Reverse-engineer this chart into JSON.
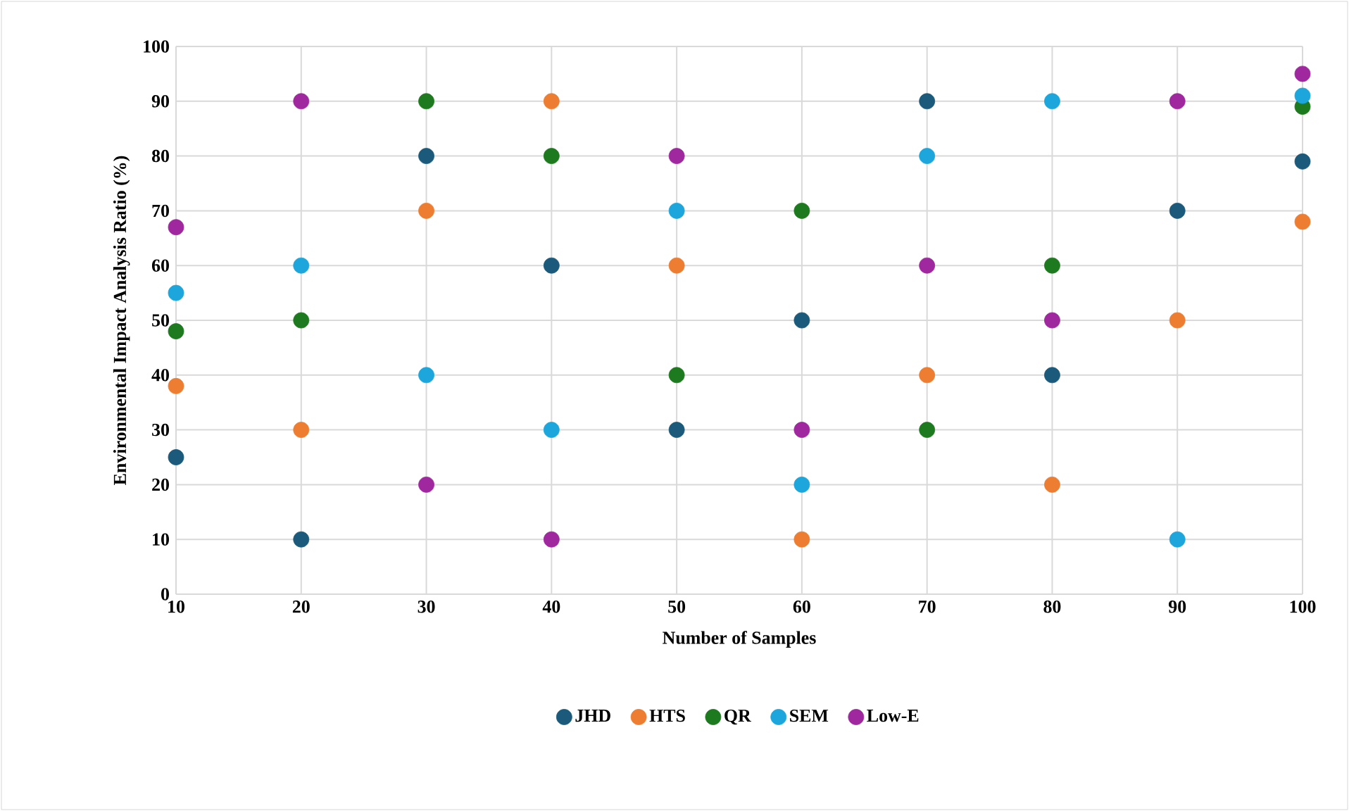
{
  "chart_data": {
    "type": "scatter",
    "xlabel": "Number of Samples",
    "ylabel": "Environmental Impact  Analysis Ratio (%)",
    "x": [
      10,
      20,
      30,
      40,
      50,
      60,
      70,
      80,
      90,
      100
    ],
    "series": [
      {
        "name": "JHD",
        "color": "#1b5a7a",
        "values": [
          25,
          10,
          80,
          60,
          30,
          50,
          90,
          40,
          70,
          79
        ]
      },
      {
        "name": "HTS",
        "color": "#ed7d31",
        "values": [
          38,
          30,
          70,
          90,
          60,
          10,
          40,
          20,
          50,
          68
        ]
      },
      {
        "name": "QR",
        "color": "#1e7a1e",
        "values": [
          48,
          50,
          90,
          80,
          40,
          70,
          30,
          60,
          null,
          89
        ]
      },
      {
        "name": "SEM",
        "color": "#1ca6dc",
        "values": [
          55,
          60,
          40,
          30,
          70,
          20,
          80,
          90,
          10,
          91
        ]
      },
      {
        "name": "Low-E",
        "color": "#a0289e",
        "values": [
          67,
          90,
          20,
          10,
          80,
          30,
          60,
          50,
          90,
          95
        ]
      }
    ],
    "xlim": [
      10,
      100
    ],
    "xticks": [
      10,
      20,
      30,
      40,
      50,
      60,
      70,
      80,
      90,
      100
    ],
    "ylim": [
      0,
      100
    ],
    "yticks": [
      0,
      10,
      20,
      30,
      40,
      50,
      60,
      70,
      80,
      90,
      100
    ],
    "grid": true,
    "legend": "bottom",
    "marker": "circle"
  }
}
